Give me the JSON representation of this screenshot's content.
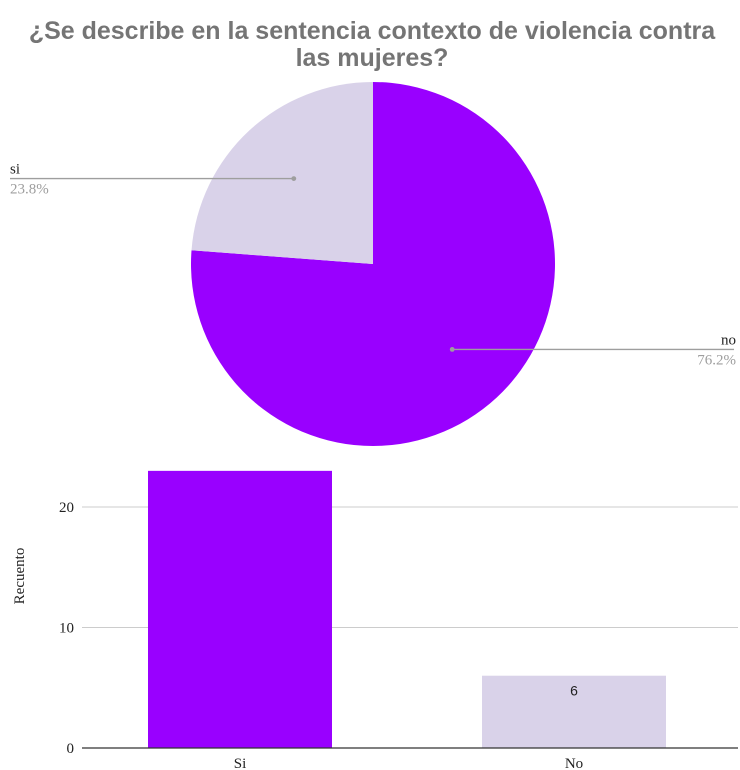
{
  "chart_data": [
    {
      "type": "pie",
      "title_lines": [
        "¿Se describe en la sentencia contexto de violencia contra",
        "las mujeres?"
      ],
      "slices": [
        {
          "label": "no",
          "percent_label": "76.2%",
          "value": 76.2,
          "color": "#9900ff"
        },
        {
          "label": "si",
          "percent_label": "23.8%",
          "value": 23.8,
          "color": "#d9d2e9"
        }
      ],
      "legend": "none"
    },
    {
      "type": "bar",
      "categories": [
        "Si",
        "No"
      ],
      "values": [
        23,
        6
      ],
      "colors": [
        "#9900ff",
        "#d9d2e9"
      ],
      "data_labels": [
        "",
        "6"
      ],
      "ylabel": "Recuento",
      "xlabel": "",
      "yticks": [
        "0",
        "10",
        "20"
      ],
      "ylim": [
        0,
        23
      ],
      "grid": true
    }
  ]
}
